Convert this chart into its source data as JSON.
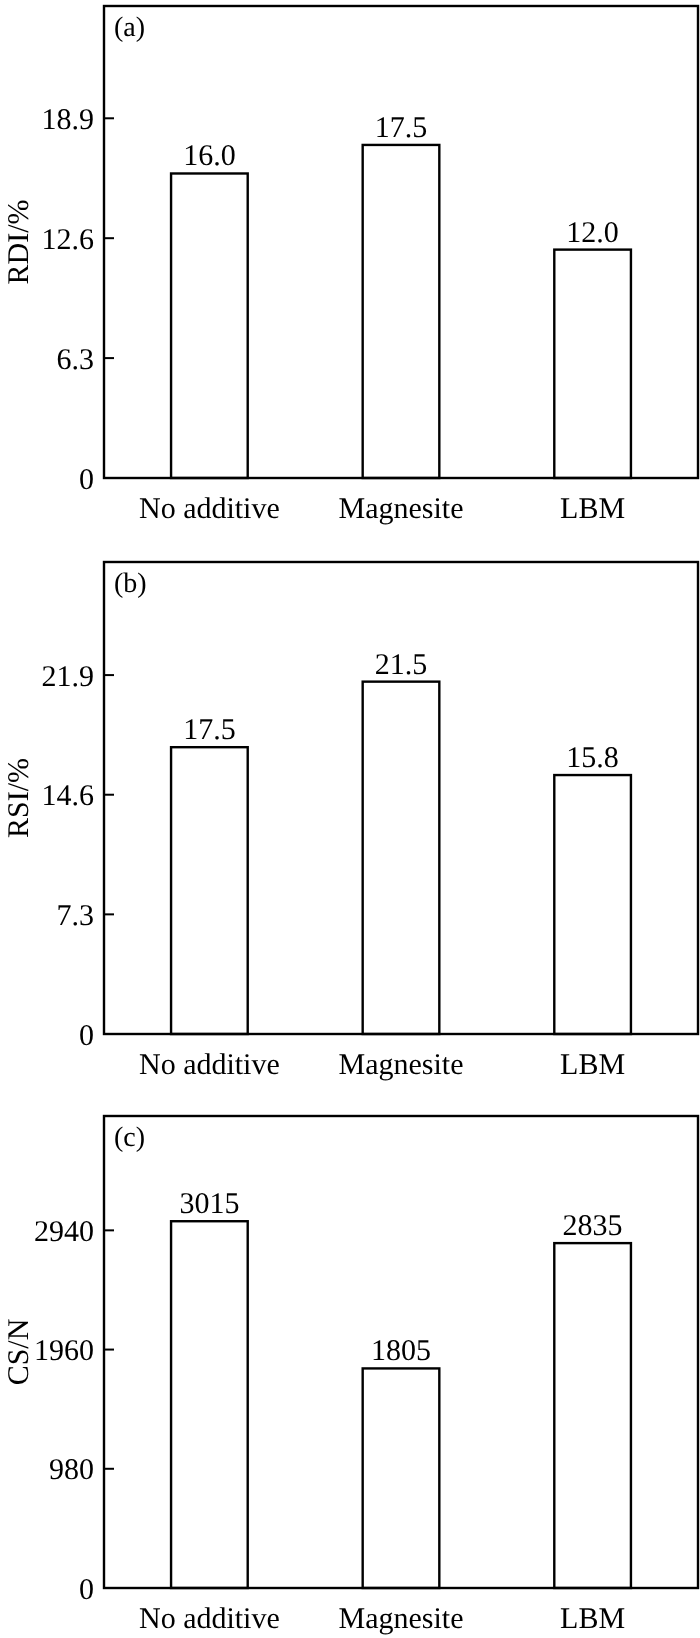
{
  "chart_data": [
    {
      "type": "bar",
      "title": "(a)",
      "ylabel": "RDI/%",
      "categories": [
        "No additive",
        "Magnesite",
        "LBM"
      ],
      "values": [
        16.0,
        17.5,
        12.0
      ],
      "value_labels": [
        "16.0",
        "17.5",
        "12.0"
      ],
      "color": "#ffffff",
      "ylim": [
        0,
        24.8
      ],
      "yticks": [
        0,
        6.3,
        12.6,
        18.9
      ]
    },
    {
      "type": "bar",
      "title": "(b)",
      "ylabel": "RSI/%",
      "categories": [
        "No additive",
        "Magnesite",
        "LBM"
      ],
      "values": [
        17.5,
        21.5,
        15.8
      ],
      "value_labels": [
        "17.5",
        "21.5",
        "15.8"
      ],
      "color": "#ffffff",
      "ylim": [
        0,
        28.8
      ],
      "yticks": [
        0,
        7.3,
        14.6,
        21.9
      ]
    },
    {
      "type": "bar",
      "title": "(c)",
      "ylabel": "CS/N",
      "categories": [
        "No additive",
        "Magnesite",
        "LBM"
      ],
      "values": [
        3015,
        1805,
        2835
      ],
      "value_labels": [
        "3015",
        "1805",
        "2835"
      ],
      "color": "#ffffff",
      "ylim": [
        0,
        3880
      ],
      "yticks": [
        0,
        980,
        1960,
        2940
      ]
    }
  ]
}
